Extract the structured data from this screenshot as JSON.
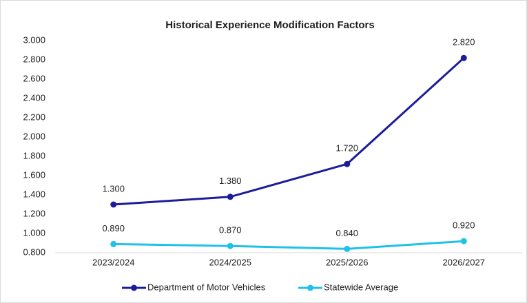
{
  "chart_data": {
    "type": "line",
    "title": "Historical Experience Modification Factors",
    "categories": [
      "2023/2024",
      "2024/2025",
      "2025/2026",
      "2026/2027"
    ],
    "series": [
      {
        "name": "Department of Motor Vehicles",
        "color": "#1c1c9c",
        "values": [
          1.3,
          1.38,
          1.72,
          2.82
        ],
        "value_labels": [
          "1.300",
          "1.380",
          "1.720",
          "2.820"
        ]
      },
      {
        "name": "Statewide Average",
        "color": "#1ec2e8",
        "values": [
          0.89,
          0.87,
          0.84,
          0.92
        ],
        "value_labels": [
          "0.890",
          "0.870",
          "0.840",
          "0.920"
        ]
      }
    ],
    "ylim": [
      0.8,
      3.0
    ],
    "yticks": [
      {
        "value": 0.8,
        "label": "0.800"
      },
      {
        "value": 1.0,
        "label": "1.000"
      },
      {
        "value": 1.2,
        "label": "1.200"
      },
      {
        "value": 1.4,
        "label": "1.400"
      },
      {
        "value": 1.6,
        "label": "1.600"
      },
      {
        "value": 1.8,
        "label": "1.800"
      },
      {
        "value": 2.0,
        "label": "2.000"
      },
      {
        "value": 2.2,
        "label": "2.200"
      },
      {
        "value": 2.4,
        "label": "2.400"
      },
      {
        "value": 2.6,
        "label": "2.600"
      },
      {
        "value": 2.8,
        "label": "2.800"
      },
      {
        "value": 3.0,
        "label": "3.000"
      }
    ],
    "grid": false,
    "legend": "bottom"
  }
}
